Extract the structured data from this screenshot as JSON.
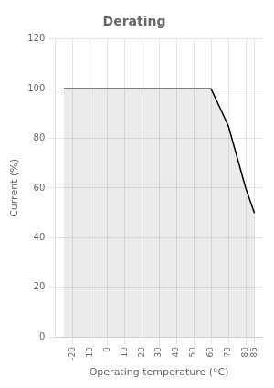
{
  "chart_data": {
    "type": "area",
    "title": "Derating",
    "x": [
      -25,
      -10,
      0,
      10,
      20,
      30,
      40,
      50,
      60,
      70,
      80,
      85
    ],
    "values": [
      100,
      100,
      100,
      100,
      100,
      100,
      100,
      100,
      100,
      85,
      60,
      50
    ],
    "color": "#000000",
    "x_label": "Operating temperature (°C)",
    "y_label": "Current (%)",
    "xlim": [
      -30,
      90
    ],
    "xticks": [
      -20,
      -10,
      0,
      10,
      20,
      30,
      40,
      50,
      60,
      70,
      80,
      85
    ],
    "ylim": [
      0,
      120
    ],
    "yticks": [
      0,
      20,
      40,
      60,
      80,
      100,
      120
    ],
    "grid": true
  }
}
